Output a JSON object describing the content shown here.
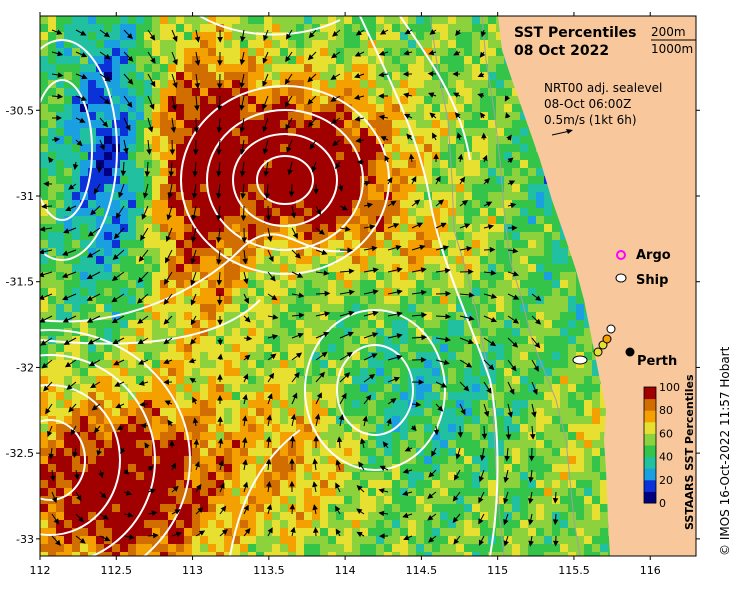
{
  "title": "SST Percentiles",
  "date": "08 Oct 2022",
  "depth_legend": [
    "200m",
    "1000m"
  ],
  "sealevel_source": "NRT00 adj. sealevel",
  "sealevel_time": "08-Oct 06:00Z",
  "vector_scale": "0.5m/s (1kt 6h)",
  "legend": {
    "argo": "Argo",
    "ship": "Ship"
  },
  "place_label": "Perth",
  "colorbar": {
    "title": "SSTAARS SST Percentiles",
    "ticks": [
      "0",
      "20",
      "40",
      "60",
      "80",
      "100"
    ],
    "colors": [
      "#000080",
      "#0a32d8",
      "#1aa0e0",
      "#20c0a0",
      "#34c44a",
      "#8cd23c",
      "#e8e030",
      "#f4a000",
      "#d26e00",
      "#a00000"
    ]
  },
  "axes": {
    "x_ticks": [
      "112",
      "112.5",
      "113",
      "113.5",
      "114",
      "114.5",
      "115",
      "115.5",
      "116"
    ],
    "y_ticks": [
      "-30.5",
      "-31",
      "-31.5",
      "-32",
      "-32.5",
      "-33"
    ],
    "x_range": [
      112,
      116.3
    ],
    "y_range": [
      -33.1,
      -29.95
    ]
  },
  "credit": "© IMOS 16-Oct-2022 11:57 Hobart",
  "colors": {
    "land": "#f8c89c",
    "contour": "#ffffff",
    "isobath": "#a0a0a0"
  }
}
